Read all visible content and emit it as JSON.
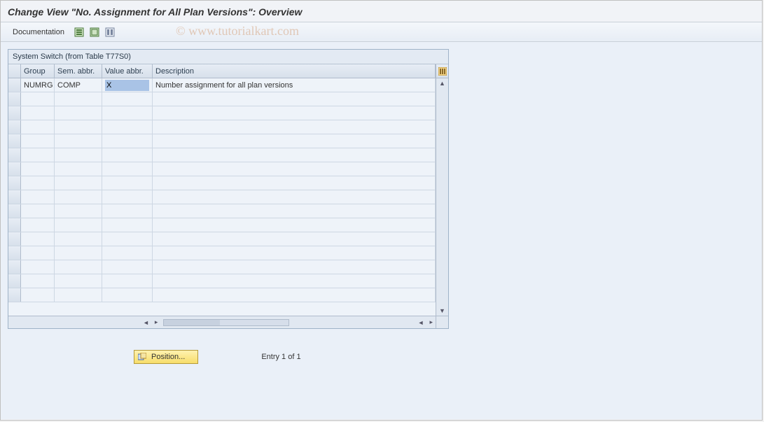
{
  "colors": {
    "panel_border": "#9fb3c8",
    "header_grad_top": "#e7edf5",
    "header_grad_bottom": "#d7e0eb",
    "row_bg": "#eef3f9",
    "row_border": "#cdd7e3",
    "button_bg_top": "#fff2b0",
    "button_bg_bottom": "#f7dd6a",
    "watermark": "rgba(200,120,60,0.35)"
  },
  "window": {
    "title": "Change View \"No. Assignment for All Plan Versions\": Overview"
  },
  "toolbar": {
    "documentation_label": "Documentation",
    "icons": [
      "table-select-icon",
      "table-deselect-icon",
      "table-settings-icon"
    ]
  },
  "watermark": "© www.tutorialkart.com",
  "panel": {
    "title": "System Switch (from Table T77S0)",
    "columns": {
      "group": "Group",
      "sem": "Sem. abbr.",
      "val": "Value abbr.",
      "desc": "Description"
    },
    "rows": [
      {
        "group": "NUMRG",
        "sem": "COMP",
        "val": "X",
        "desc": "Number assignment for all plan versions"
      }
    ],
    "empty_row_count": 15
  },
  "footer": {
    "position_label": "Position...",
    "entry_text": "Entry 1 of 1"
  }
}
